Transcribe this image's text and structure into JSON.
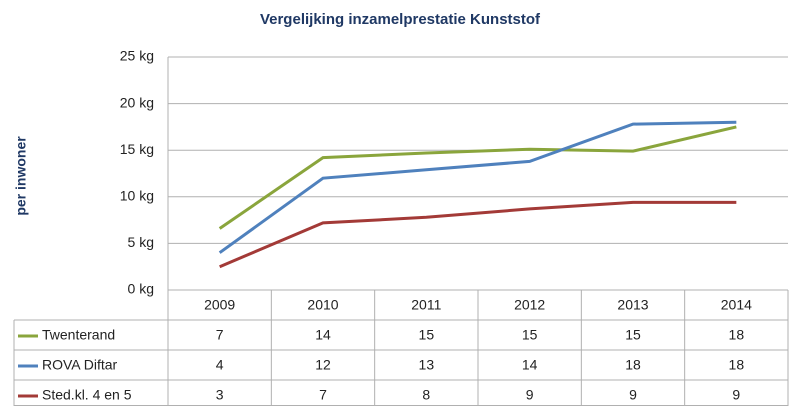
{
  "chart_data": {
    "type": "line",
    "title": "Vergelijking inzamelprestatie Kunststof",
    "y_label": "per inwoner",
    "categories": [
      "2009",
      "2010",
      "2011",
      "2012",
      "2013",
      "2014"
    ],
    "series": [
      {
        "name": "Twenterand",
        "color": "#8aa53c",
        "values": [
          6.6,
          14.2,
          14.7,
          15.1,
          14.9,
          17.5
        ],
        "value_labels": [
          "7",
          "14",
          "15",
          "15",
          "15",
          "18"
        ]
      },
      {
        "name": "ROVA Diftar",
        "color": "#4f81bd",
        "values": [
          4.0,
          12.0,
          12.9,
          13.8,
          17.8,
          18.0
        ],
        "value_labels": [
          "4",
          "12",
          "13",
          "14",
          "18",
          "18"
        ]
      },
      {
        "name": "Sted.kl. 4 en 5",
        "color": "#a33a37",
        "values": [
          2.5,
          7.2,
          7.8,
          8.7,
          9.4,
          9.4
        ],
        "value_labels": [
          "3",
          "7",
          "8",
          "9",
          "9",
          "9"
        ]
      }
    ],
    "ylim": [
      0,
      25
    ],
    "yticks": [
      {
        "value": 0,
        "label": "0 kg"
      },
      {
        "value": 5,
        "label": "5 kg"
      },
      {
        "value": 10,
        "label": "10 kg"
      },
      {
        "value": 15,
        "label": "15 kg"
      },
      {
        "value": 20,
        "label": "20 kg"
      },
      {
        "value": 25,
        "label": "25 kg"
      }
    ],
    "grid": true
  }
}
